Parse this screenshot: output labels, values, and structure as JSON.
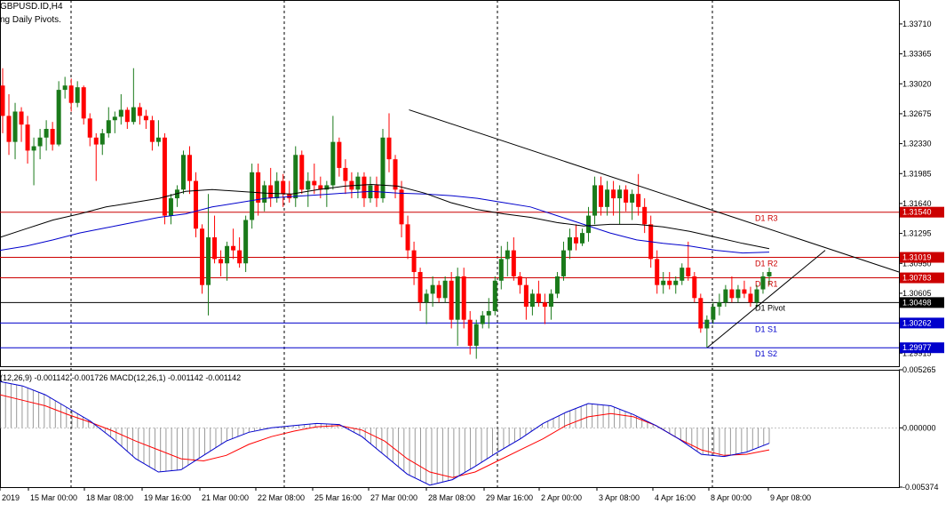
{
  "header": {
    "symbol": "GBPUSD.ID,H4",
    "indicator": "ng Daily Pivots."
  },
  "macd_header": "(12,26,9) -0.001142 -0.001726 MACD(12,26,1) -0.001142 -0.001142",
  "colors": {
    "bull": "#1a7a1a",
    "bear": "#ff0000",
    "ma_slow": "#0000cc",
    "ma_fast": "#000000",
    "resistance": "#cc0000",
    "support": "#0000cc",
    "macd_signal": "#ff0000",
    "macd_line": "#0000cc"
  },
  "chart_data": [
    {
      "type": "candlestick",
      "title": "GBPUSD.ID,H4",
      "x_tick_labels": [
        "2019",
        "15 Mar 00:00",
        "18 Mar 08:00",
        "19 Mar 16:00",
        "21 Mar 00:00",
        "22 Mar 08:00",
        "25 Mar 16:00",
        "27 Mar 00:00",
        "28 Mar 08:00",
        "29 Mar 16:00",
        "2 Apr 00:00",
        "3 Apr 08:00",
        "4 Apr 16:00",
        "8 Apr 00:00",
        "9 Apr 08:00"
      ],
      "y_tick_labels": [
        "1.33710",
        "1.33365",
        "1.33020",
        "1.32675",
        "1.32330",
        "1.31985",
        "1.31640",
        "1.31295",
        "1.30950",
        "1.30605",
        "1.29915"
      ],
      "ylim": [
        1.29764,
        1.33986
      ],
      "pivot_levels": [
        {
          "label": "D1 R3",
          "price_label": "1.31540",
          "value": 1.3154,
          "kind": "resistance"
        },
        {
          "label": "D1 R2",
          "price_label": "1.31019",
          "value": 1.31019,
          "kind": "resistance"
        },
        {
          "label": "D1 R1",
          "price_label": "1.30783",
          "value": 1.30783,
          "kind": "resistance"
        },
        {
          "label": "D1 Pivot",
          "price_label": "1.30498",
          "value": 1.30498,
          "kind": "pivot"
        },
        {
          "label": "D1 S1",
          "price_label": "1.30262",
          "value": 1.30262,
          "kind": "support"
        },
        {
          "label": "D1 S2",
          "price_label": "1.29977",
          "value": 1.29977,
          "kind": "support"
        }
      ],
      "candles_ohlc": [
        [
          1.33,
          1.332,
          1.3245,
          1.3265
        ],
        [
          1.3265,
          1.329,
          1.322,
          1.3235
        ],
        [
          1.3235,
          1.328,
          1.3215,
          1.327
        ],
        [
          1.327,
          1.3275,
          1.3235,
          1.3255
        ],
        [
          1.3255,
          1.3265,
          1.321,
          1.3225
        ],
        [
          1.3225,
          1.324,
          1.3185,
          1.323
        ],
        [
          1.323,
          1.325,
          1.3215,
          1.324
        ],
        [
          1.324,
          1.326,
          1.3225,
          1.325
        ],
        [
          1.325,
          1.3258,
          1.3225,
          1.3232
        ],
        [
          1.3232,
          1.3305,
          1.323,
          1.3295
        ],
        [
          1.3295,
          1.331,
          1.3285,
          1.33
        ],
        [
          1.33,
          1.3308,
          1.327,
          1.328
        ],
        [
          1.328,
          1.3305,
          1.3275,
          1.3298
        ],
        [
          1.3298,
          1.33,
          1.3255,
          1.3262
        ],
        [
          1.3262,
          1.3268,
          1.323,
          1.324
        ],
        [
          1.324,
          1.3245,
          1.319,
          1.3232
        ],
        [
          1.3232,
          1.325,
          1.322,
          1.3245
        ],
        [
          1.3245,
          1.3275,
          1.324,
          1.326
        ],
        [
          1.326,
          1.327,
          1.3245,
          1.3264
        ],
        [
          1.3264,
          1.329,
          1.3255,
          1.3272
        ],
        [
          1.3272,
          1.3275,
          1.325,
          1.3258
        ],
        [
          1.3258,
          1.332,
          1.3255,
          1.3275
        ],
        [
          1.3275,
          1.328,
          1.3255,
          1.3265
        ],
        [
          1.3265,
          1.3272,
          1.325,
          1.326
        ],
        [
          1.326,
          1.3265,
          1.3225,
          1.3235
        ],
        [
          1.3235,
          1.326,
          1.323,
          1.324
        ],
        [
          1.324,
          1.3245,
          1.314,
          1.315
        ],
        [
          1.315,
          1.3175,
          1.314,
          1.317
        ],
        [
          1.317,
          1.3185,
          1.316,
          1.318
        ],
        [
          1.318,
          1.3225,
          1.3175,
          1.322
        ],
        [
          1.322,
          1.323,
          1.3175,
          1.319
        ],
        [
          1.319,
          1.32,
          1.3125,
          1.3135
        ],
        [
          1.3135,
          1.314,
          1.306,
          1.307
        ],
        [
          1.307,
          1.3175,
          1.3035,
          1.3125
        ],
        [
          1.3125,
          1.315,
          1.3095,
          1.31
        ],
        [
          1.31,
          1.311,
          1.308,
          1.3095
        ],
        [
          1.3095,
          1.312,
          1.3075,
          1.3115
        ],
        [
          1.3115,
          1.3135,
          1.31,
          1.311
        ],
        [
          1.311,
          1.3125,
          1.309,
          1.3095
        ],
        [
          1.3095,
          1.315,
          1.3085,
          1.3145
        ],
        [
          1.3145,
          1.321,
          1.3135,
          1.32
        ],
        [
          1.32,
          1.321,
          1.315,
          1.3165
        ],
        [
          1.3165,
          1.319,
          1.3155,
          1.3185
        ],
        [
          1.3185,
          1.3205,
          1.316,
          1.317
        ],
        [
          1.317,
          1.32,
          1.3165,
          1.319
        ],
        [
          1.319,
          1.3198,
          1.316,
          1.3175
        ],
        [
          1.3175,
          1.319,
          1.3165,
          1.317
        ],
        [
          1.317,
          1.323,
          1.316,
          1.322
        ],
        [
          1.322,
          1.3225,
          1.3175,
          1.318
        ],
        [
          1.318,
          1.32,
          1.316,
          1.319
        ],
        [
          1.319,
          1.321,
          1.3175,
          1.3185
        ],
        [
          1.3185,
          1.3195,
          1.317,
          1.318
        ],
        [
          1.318,
          1.319,
          1.316,
          1.3185
        ],
        [
          1.3185,
          1.3265,
          1.318,
          1.3235
        ],
        [
          1.3235,
          1.324,
          1.3195,
          1.3205
        ],
        [
          1.3205,
          1.3215,
          1.3175,
          1.319
        ],
        [
          1.319,
          1.32,
          1.317,
          1.318
        ],
        [
          1.318,
          1.32,
          1.317,
          1.3195
        ],
        [
          1.3195,
          1.32,
          1.316,
          1.317
        ],
        [
          1.317,
          1.3195,
          1.3165,
          1.3185
        ],
        [
          1.3185,
          1.3195,
          1.316,
          1.317
        ],
        [
          1.317,
          1.325,
          1.3165,
          1.324
        ],
        [
          1.324,
          1.3268,
          1.32,
          1.3215
        ],
        [
          1.3215,
          1.322,
          1.317,
          1.318
        ],
        [
          1.318,
          1.319,
          1.3125,
          1.314
        ],
        [
          1.314,
          1.315,
          1.31,
          1.311
        ],
        [
          1.311,
          1.312,
          1.307,
          1.3085
        ],
        [
          1.3085,
          1.309,
          1.304,
          1.305
        ],
        [
          1.305,
          1.3065,
          1.3025,
          1.306
        ],
        [
          1.306,
          1.308,
          1.3045,
          1.307
        ],
        [
          1.307,
          1.3075,
          1.305,
          1.3055
        ],
        [
          1.3055,
          1.308,
          1.305,
          1.3075
        ],
        [
          1.3075,
          1.3085,
          1.302,
          1.303
        ],
        [
          1.303,
          1.309,
          1.3,
          1.308
        ],
        [
          1.308,
          1.309,
          1.302,
          1.303
        ],
        [
          1.303,
          1.304,
          1.299,
          1.3
        ],
        [
          1.3,
          1.303,
          1.2985,
          1.3025
        ],
        [
          1.3025,
          1.304,
          1.302,
          1.3035
        ],
        [
          1.3035,
          1.3055,
          1.302,
          1.304
        ],
        [
          1.304,
          1.308,
          1.3035,
          1.3075
        ],
        [
          1.3075,
          1.3115,
          1.3065,
          1.31
        ],
        [
          1.31,
          1.312,
          1.308,
          1.311
        ],
        [
          1.311,
          1.3125,
          1.3075,
          1.308
        ],
        [
          1.308,
          1.3085,
          1.306,
          1.307
        ],
        [
          1.307,
          1.3078,
          1.303,
          1.3045
        ],
        [
          1.3045,
          1.3065,
          1.3035,
          1.306
        ],
        [
          1.306,
          1.3075,
          1.3045,
          1.305
        ],
        [
          1.305,
          1.306,
          1.3025,
          1.3045
        ],
        [
          1.3045,
          1.3065,
          1.303,
          1.306
        ],
        [
          1.306,
          1.3085,
          1.3055,
          1.308
        ],
        [
          1.308,
          1.312,
          1.3075,
          1.311
        ],
        [
          1.311,
          1.3135,
          1.31,
          1.3125
        ],
        [
          1.3125,
          1.314,
          1.311,
          1.3118
        ],
        [
          1.3118,
          1.3135,
          1.3115,
          1.313
        ],
        [
          1.313,
          1.316,
          1.312,
          1.315
        ],
        [
          1.315,
          1.3195,
          1.314,
          1.3185
        ],
        [
          1.3185,
          1.3195,
          1.315,
          1.316
        ],
        [
          1.316,
          1.319,
          1.315,
          1.318
        ],
        [
          1.318,
          1.319,
          1.315,
          1.317
        ],
        [
          1.317,
          1.3185,
          1.314,
          1.318
        ],
        [
          1.318,
          1.3185,
          1.3155,
          1.3165
        ],
        [
          1.3165,
          1.318,
          1.3145,
          1.3175
        ],
        [
          1.3175,
          1.3198,
          1.315,
          1.316
        ],
        [
          1.316,
          1.317,
          1.313,
          1.314
        ],
        [
          1.314,
          1.315,
          1.309,
          1.31
        ],
        [
          1.31,
          1.311,
          1.306,
          1.307
        ],
        [
          1.307,
          1.3085,
          1.306,
          1.3075
        ],
        [
          1.3075,
          1.3085,
          1.3065,
          1.307
        ],
        [
          1.307,
          1.308,
          1.306,
          1.3075
        ],
        [
          1.3075,
          1.3095,
          1.307,
          1.309
        ],
        [
          1.309,
          1.312,
          1.3075,
          1.308
        ],
        [
          1.308,
          1.3085,
          1.305,
          1.3055
        ],
        [
          1.3055,
          1.306,
          1.3015,
          1.302
        ],
        [
          1.302,
          1.3035,
          1.2998,
          1.303
        ],
        [
          1.303,
          1.305,
          1.3025,
          1.3045
        ],
        [
          1.3045,
          1.306,
          1.3035,
          1.305
        ],
        [
          1.305,
          1.307,
          1.3045,
          1.3065
        ],
        [
          1.3065,
          1.308,
          1.305,
          1.3055
        ],
        [
          1.3055,
          1.307,
          1.305,
          1.3065
        ],
        [
          1.3065,
          1.3075,
          1.3055,
          1.306
        ],
        [
          1.306,
          1.3068,
          1.3045,
          1.305
        ],
        [
          1.305,
          1.307,
          1.3045,
          1.3065
        ],
        [
          1.3065,
          1.3085,
          1.306,
          1.308
        ],
        [
          1.308,
          1.309,
          1.307,
          1.3085
        ]
      ],
      "ma_slow_values": [
        1.311,
        1.3115,
        1.3122,
        1.313,
        1.3136,
        1.3142,
        1.3148,
        1.3152,
        1.316,
        1.3165,
        1.317,
        1.3172,
        1.3174,
        1.3176,
        1.3178,
        1.3176,
        1.3175,
        1.3173,
        1.317,
        1.3165,
        1.316,
        1.315,
        1.314,
        1.313,
        1.3122,
        1.3118,
        1.3115,
        1.311,
        1.3107,
        1.3108
      ],
      "ma_fast_values": [
        1.3125,
        1.3135,
        1.3145,
        1.3152,
        1.316,
        1.3165,
        1.317,
        1.3178,
        1.318,
        1.3178,
        1.3176,
        1.3175,
        1.318,
        1.3184,
        1.3186,
        1.3184,
        1.3176,
        1.3165,
        1.3157,
        1.3152,
        1.3148,
        1.3142,
        1.3138,
        1.314,
        1.314,
        1.3137,
        1.3132,
        1.3125,
        1.3118,
        1.3112
      ],
      "trendline_down": [
        [
          1.3272,
          0.455
        ],
        [
          1.3085,
          1.0
        ]
      ],
      "trendline_up": [
        [
          1.2998,
          0.787
        ],
        [
          1.311,
          0.918
        ]
      ]
    },
    {
      "type": "line",
      "title": "MACD",
      "y_tick_labels": [
        "0.005265",
        "0.000000",
        "-0.005374"
      ],
      "ylim": [
        -0.005374,
        0.005265
      ],
      "signal_values": [
        0.003,
        0.0025,
        0.002,
        0.0012,
        0.0005,
        -0.0003,
        -0.0012,
        -0.002,
        -0.0028,
        -0.003,
        -0.0025,
        -0.0015,
        -0.0008,
        -0.0003,
        0.0001,
        0.0002,
        -0.0002,
        -0.0012,
        -0.0028,
        -0.004,
        -0.0045,
        -0.004,
        -0.003,
        -0.002,
        -0.001,
        0.0002,
        0.001,
        0.0013,
        0.001,
        0.0002,
        -0.001,
        -0.002,
        -0.0025,
        -0.0024,
        -0.002
      ],
      "macd_values": [
        0.0042,
        0.0038,
        0.003,
        0.0018,
        0.0006,
        -0.001,
        -0.0028,
        -0.004,
        -0.0038,
        -0.0025,
        -0.0012,
        -0.0004,
        0.0,
        0.0002,
        0.0004,
        0.0003,
        -0.0008,
        -0.0025,
        -0.0042,
        -0.0052,
        -0.0047,
        -0.0035,
        -0.0022,
        -0.001,
        0.0004,
        0.0014,
        0.0022,
        0.002,
        0.0012,
        0.0002,
        -0.001,
        -0.0024,
        -0.0026,
        -0.0022,
        -0.0014
      ]
    }
  ]
}
